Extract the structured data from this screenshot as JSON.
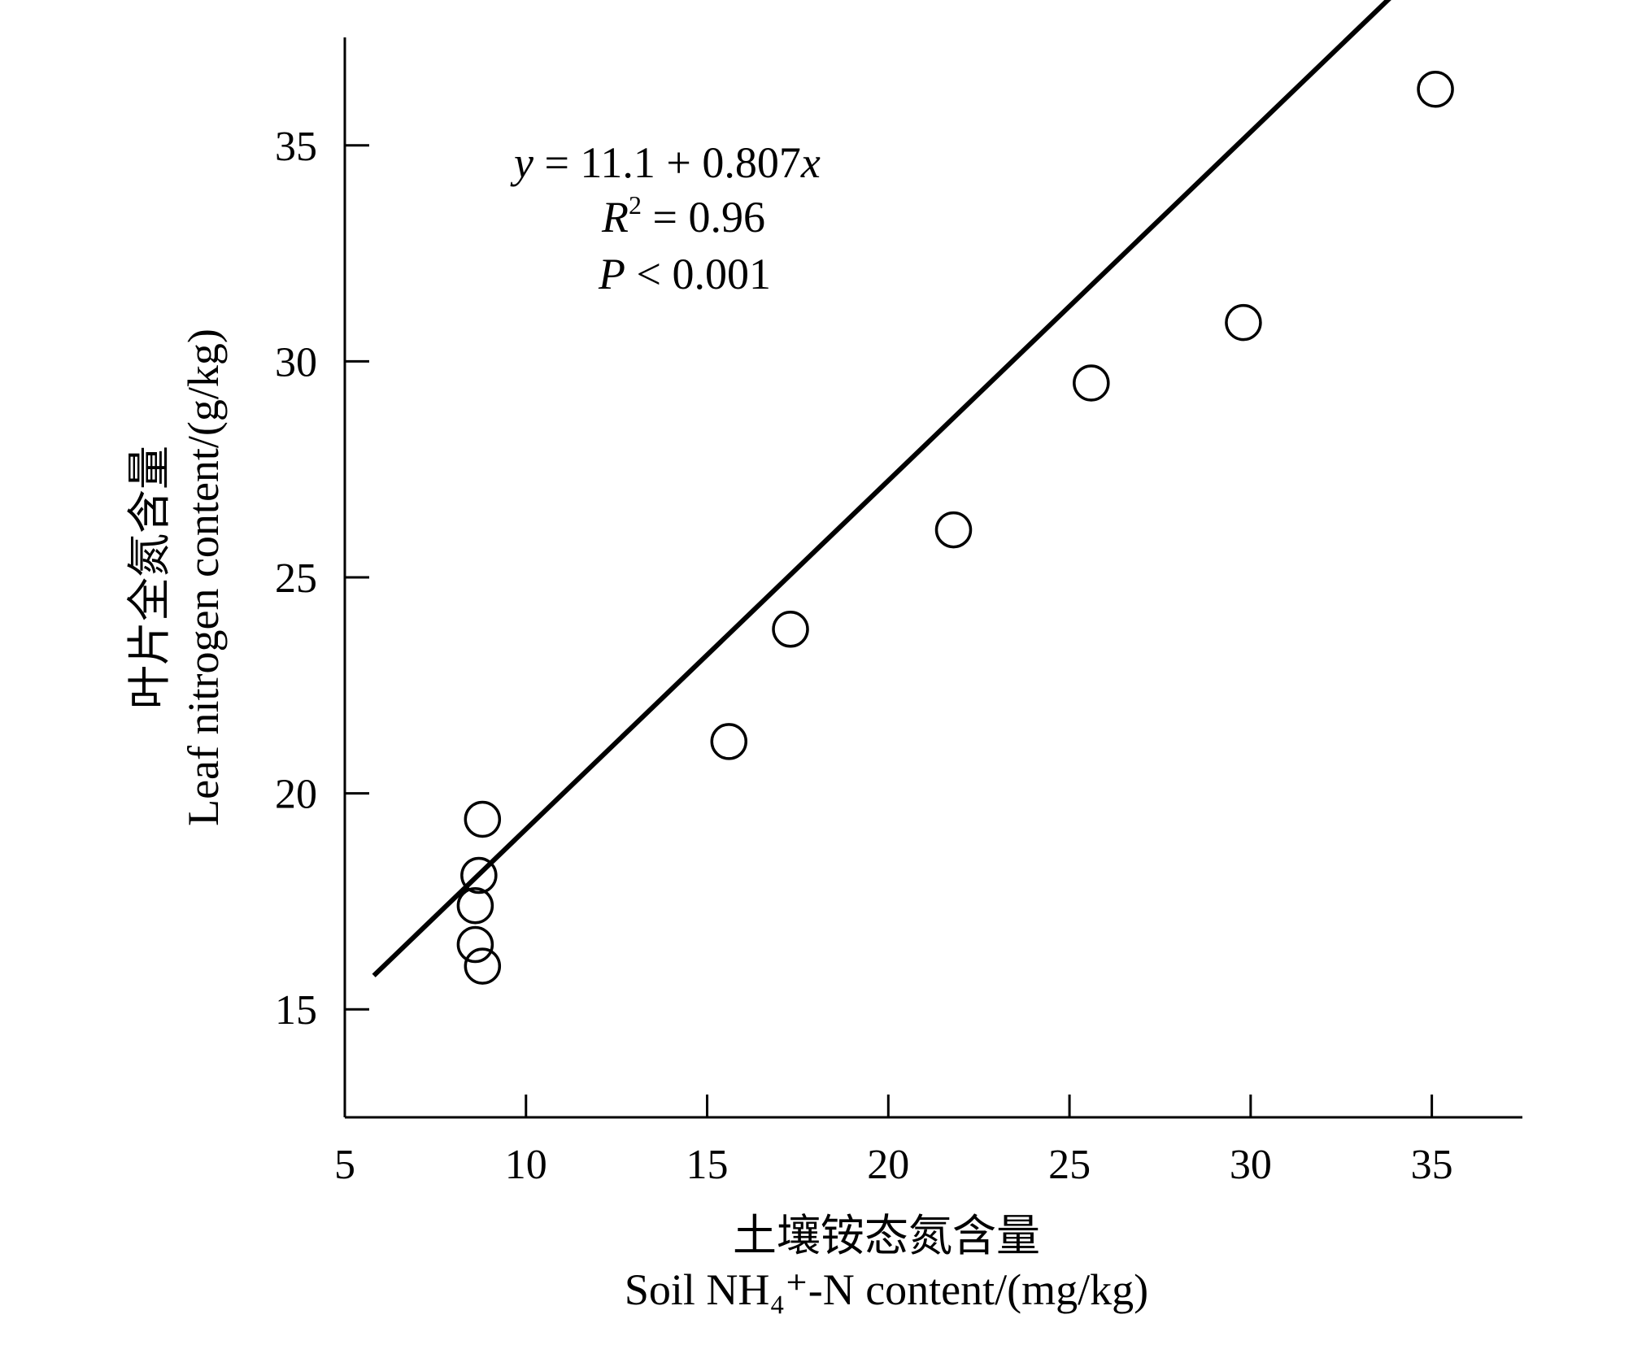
{
  "chart_data": {
    "type": "scatter",
    "xlabel_cn": "土壤铵态氮含量",
    "xlabel_en": "Soil NH₄⁺-N content/(mg/kg)",
    "ylabel_cn": "叶片全氮含量",
    "ylabel_en": "Leaf nitrogen content/(g/kg)",
    "xlim": [
      5,
      37.5
    ],
    "ylim": [
      12.5,
      37.5
    ],
    "x_ticks": [
      5,
      10,
      15,
      20,
      25,
      30,
      35
    ],
    "y_ticks": [
      15,
      20,
      25,
      30,
      35
    ],
    "grid": false,
    "series": [
      {
        "points": [
          {
            "x": 8.8,
            "y": 19.4
          },
          {
            "x": 8.7,
            "y": 18.1
          },
          {
            "x": 8.6,
            "y": 17.4
          },
          {
            "x": 8.6,
            "y": 16.5
          },
          {
            "x": 8.8,
            "y": 16.0
          },
          {
            "x": 15.6,
            "y": 21.2
          },
          {
            "x": 17.3,
            "y": 23.8
          },
          {
            "x": 21.8,
            "y": 26.1
          },
          {
            "x": 25.6,
            "y": 29.5
          },
          {
            "x": 29.8,
            "y": 30.9
          },
          {
            "x": 35.1,
            "y": 36.3
          }
        ]
      }
    ],
    "regression": {
      "intercept": 11.1,
      "slope": 0.807,
      "x_range": [
        5.8,
        37.5
      ]
    },
    "annotations": {
      "equation": {
        "y": "y",
        "eq": " = 11.1 + 0.807",
        "x": "x"
      },
      "r2": {
        "R": "R",
        "sup": "2",
        "rest": " = 0.96"
      },
      "p": {
        "P": "P",
        "rest": " < 0.001"
      }
    }
  }
}
